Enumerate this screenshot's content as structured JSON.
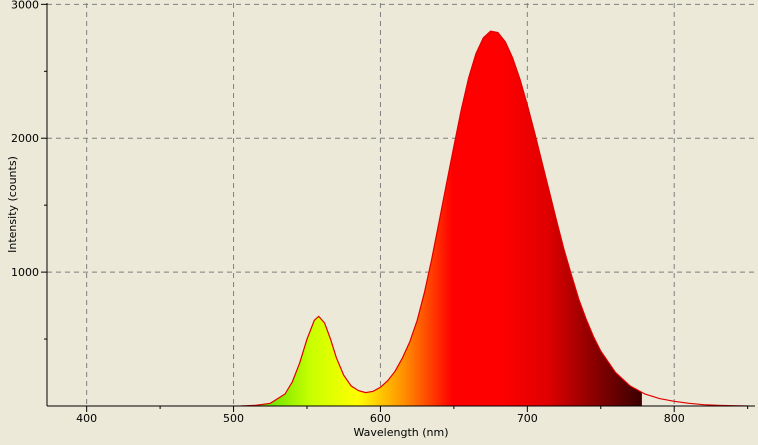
{
  "chart_data": {
    "type": "area",
    "title": "",
    "xlabel": "Wavelength (nm)",
    "ylabel": "Intensity (counts)",
    "xlim": [
      373,
      855
    ],
    "ylim": [
      0,
      3010
    ],
    "x_ticks": [
      400,
      500,
      600,
      700,
      800
    ],
    "y_ticks": [
      1000,
      2000,
      3000
    ],
    "grid": true,
    "legend": "none",
    "series": [
      {
        "x": [
          505,
          515,
          525,
          535,
          540,
          545,
          550,
          555,
          558,
          562,
          566,
          570,
          575,
          580,
          585,
          590,
          595,
          600,
          605,
          610,
          615,
          620,
          625,
          630,
          635,
          640,
          645,
          650,
          655,
          660,
          665,
          670,
          675,
          680,
          685,
          690,
          695,
          700,
          705,
          710,
          715,
          720,
          725,
          730,
          735,
          740,
          745,
          750,
          760,
          770,
          780,
          790,
          800,
          810,
          820,
          830,
          840,
          850
        ],
        "y": [
          0,
          5,
          20,
          90,
          180,
          320,
          500,
          640,
          670,
          620,
          500,
          360,
          230,
          150,
          115,
          100,
          110,
          140,
          190,
          260,
          360,
          480,
          640,
          850,
          1100,
          1380,
          1660,
          1940,
          2210,
          2450,
          2630,
          2750,
          2800,
          2790,
          2720,
          2600,
          2440,
          2250,
          2040,
          1820,
          1600,
          1380,
          1170,
          980,
          800,
          650,
          520,
          410,
          250,
          150,
          90,
          55,
          35,
          20,
          10,
          5,
          2,
          0
        ]
      }
    ],
    "colors": {
      "background": "#ece9d8",
      "grid": "#7f7f7f",
      "outline": "#e00000",
      "gradient": [
        "#60e000",
        "#c8ff00",
        "#ffff00",
        "#ff8c00",
        "#ff0000",
        "#ff0000",
        "#e00000",
        "#8a0000",
        "#3a0000"
      ]
    }
  }
}
